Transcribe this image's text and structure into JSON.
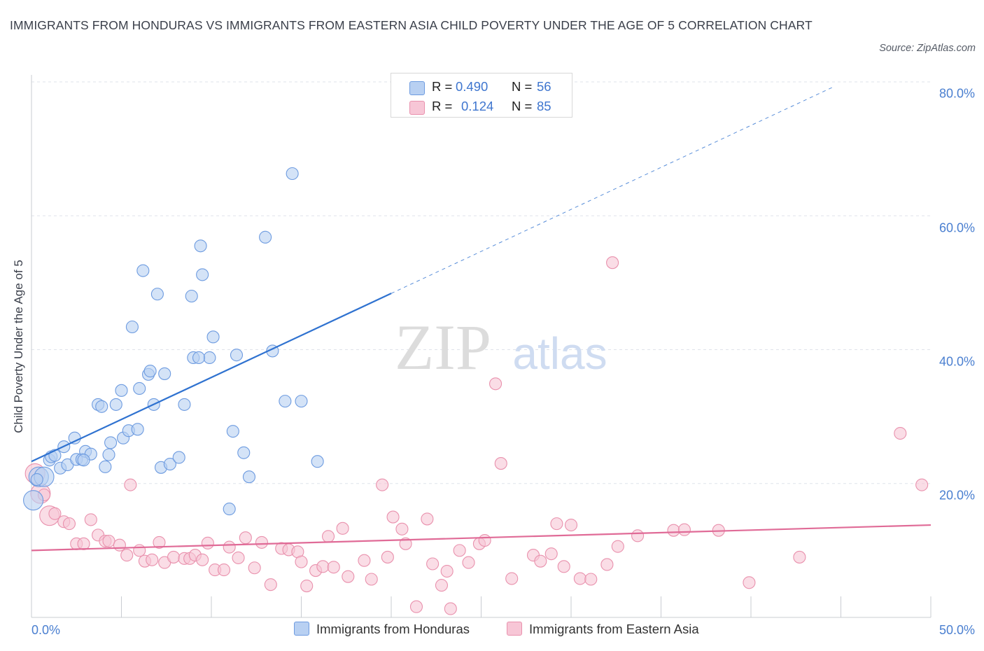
{
  "title": "IMMIGRANTS FROM HONDURAS VS IMMIGRANTS FROM EASTERN ASIA CHILD POVERTY UNDER THE AGE OF 5 CORRELATION CHART",
  "source": "Source: ZipAtlas.com",
  "watermark": {
    "zip": "ZIP",
    "atlas": "atlas"
  },
  "colors": {
    "blue_fill": "#b8d0f2",
    "blue_stroke": "#6d9be0",
    "blue_line": "#2f72d0",
    "pink_fill": "#f7c6d6",
    "pink_stroke": "#e991ad",
    "pink_line": "#e06b97",
    "axis_text": "#4a7fd0",
    "grid": "#dfe3ea"
  },
  "legend_top": [
    {
      "r_label": "R =",
      "r_value": "0.490",
      "n_label": "N =",
      "n_value": "56"
    },
    {
      "r_label": "R =",
      "r_value": "0.124",
      "n_label": "N =",
      "n_value": "85"
    }
  ],
  "legend_bottom": [
    "Immigrants from Honduras",
    "Immigrants from Eastern Asia"
  ],
  "chart_data": {
    "type": "scatter",
    "title": "IMMIGRANTS FROM HONDURAS VS IMMIGRANTS FROM EASTERN ASIA CHILD POVERTY UNDER THE AGE OF 5 CORRELATION CHART",
    "xlabel": "",
    "ylabel": "Child Poverty Under the Age of 5",
    "xlim": [
      0,
      50
    ],
    "ylim": [
      0,
      80
    ],
    "x_tick_labels": [
      "0.0%",
      "50.0%"
    ],
    "y_ticks": [
      20,
      40,
      60,
      80
    ],
    "y_tick_labels": [
      "20.0%",
      "40.0%",
      "60.0%",
      "80.0%"
    ],
    "series": [
      {
        "name": "Immigrants from Honduras",
        "color": "blue",
        "R": 0.49,
        "N": 56,
        "trend": {
          "x0": 0,
          "y0": 23.3,
          "x1": 20,
          "y1": 48.4,
          "dash_to_x": 44.5
        },
        "points": [
          [
            0.1,
            17.5
          ],
          [
            0.4,
            21.0
          ],
          [
            0.7,
            21.0
          ],
          [
            1.0,
            23.5
          ],
          [
            1.1,
            24.0
          ],
          [
            1.3,
            24.2
          ],
          [
            1.6,
            22.3
          ],
          [
            1.8,
            25.5
          ],
          [
            2.0,
            22.8
          ],
          [
            2.4,
            26.8
          ],
          [
            2.5,
            23.6
          ],
          [
            2.8,
            23.6
          ],
          [
            3.0,
            24.8
          ],
          [
            3.3,
            24.4
          ],
          [
            3.7,
            31.8
          ],
          [
            3.9,
            31.5
          ],
          [
            4.1,
            22.5
          ],
          [
            4.3,
            24.3
          ],
          [
            4.4,
            26.1
          ],
          [
            4.7,
            31.8
          ],
          [
            5.0,
            33.9
          ],
          [
            5.1,
            26.8
          ],
          [
            5.4,
            27.9
          ],
          [
            5.6,
            43.4
          ],
          [
            5.9,
            28.1
          ],
          [
            6.0,
            34.2
          ],
          [
            6.2,
            51.8
          ],
          [
            6.5,
            36.3
          ],
          [
            6.6,
            36.8
          ],
          [
            6.8,
            31.8
          ],
          [
            7.0,
            48.3
          ],
          [
            7.2,
            22.4
          ],
          [
            7.4,
            36.4
          ],
          [
            7.7,
            22.9
          ],
          [
            8.2,
            23.9
          ],
          [
            8.5,
            31.8
          ],
          [
            8.9,
            48.0
          ],
          [
            9.0,
            38.8
          ],
          [
            9.4,
            55.5
          ],
          [
            9.5,
            51.2
          ],
          [
            9.9,
            38.8
          ],
          [
            10.1,
            41.9
          ],
          [
            11.0,
            16.2
          ],
          [
            11.2,
            27.8
          ],
          [
            11.4,
            39.2
          ],
          [
            11.8,
            24.6
          ],
          [
            12.1,
            21.0
          ],
          [
            13.0,
            56.8
          ],
          [
            13.4,
            39.8
          ],
          [
            14.1,
            32.3
          ],
          [
            14.5,
            66.3
          ],
          [
            15.0,
            32.3
          ],
          [
            15.9,
            23.3
          ],
          [
            0.3,
            20.6
          ],
          [
            2.9,
            23.5
          ],
          [
            9.3,
            38.8
          ]
        ]
      },
      {
        "name": "Immigrants from Eastern Asia",
        "color": "pink",
        "R": 0.124,
        "N": 85,
        "trend": {
          "x0": 0,
          "y0": 10.0,
          "x1": 50,
          "y1": 13.8
        },
        "points": [
          [
            0.2,
            21.5
          ],
          [
            0.5,
            18.5
          ],
          [
            1.0,
            15.2
          ],
          [
            1.3,
            15.5
          ],
          [
            1.8,
            14.3
          ],
          [
            2.1,
            14.0
          ],
          [
            2.5,
            11.0
          ],
          [
            2.9,
            11.0
          ],
          [
            3.3,
            14.6
          ],
          [
            3.7,
            12.3
          ],
          [
            4.1,
            11.4
          ],
          [
            4.3,
            11.4
          ],
          [
            4.9,
            10.8
          ],
          [
            5.3,
            9.3
          ],
          [
            5.5,
            19.8
          ],
          [
            6.0,
            10.0
          ],
          [
            6.3,
            8.4
          ],
          [
            6.7,
            8.6
          ],
          [
            7.1,
            11.2
          ],
          [
            7.4,
            8.2
          ],
          [
            7.9,
            9.0
          ],
          [
            8.5,
            8.8
          ],
          [
            8.8,
            8.8
          ],
          [
            9.1,
            9.3
          ],
          [
            9.5,
            8.6
          ],
          [
            9.8,
            11.1
          ],
          [
            10.2,
            7.1
          ],
          [
            10.7,
            7.1
          ],
          [
            11.0,
            10.5
          ],
          [
            11.5,
            8.9
          ],
          [
            11.9,
            11.9
          ],
          [
            12.4,
            7.4
          ],
          [
            12.8,
            11.2
          ],
          [
            13.3,
            4.9
          ],
          [
            13.9,
            10.3
          ],
          [
            14.3,
            10.1
          ],
          [
            14.8,
            9.8
          ],
          [
            15.0,
            8.3
          ],
          [
            15.3,
            4.7
          ],
          [
            15.8,
            7.0
          ],
          [
            16.2,
            7.6
          ],
          [
            16.5,
            12.1
          ],
          [
            16.8,
            7.5
          ],
          [
            17.3,
            13.3
          ],
          [
            17.6,
            6.1
          ],
          [
            18.5,
            8.5
          ],
          [
            18.9,
            5.7
          ],
          [
            19.5,
            19.8
          ],
          [
            19.8,
            9.0
          ],
          [
            20.1,
            15.0
          ],
          [
            20.6,
            13.2
          ],
          [
            20.8,
            11.0
          ],
          [
            21.4,
            1.6
          ],
          [
            22.0,
            14.7
          ],
          [
            22.3,
            8.0
          ],
          [
            22.8,
            4.8
          ],
          [
            23.1,
            6.9
          ],
          [
            23.3,
            1.3
          ],
          [
            23.8,
            10.0
          ],
          [
            24.3,
            8.2
          ],
          [
            24.9,
            11.0
          ],
          [
            25.2,
            11.5
          ],
          [
            25.8,
            34.9
          ],
          [
            26.1,
            23.0
          ],
          [
            26.7,
            5.8
          ],
          [
            27.9,
            9.3
          ],
          [
            28.3,
            8.4
          ],
          [
            28.9,
            9.5
          ],
          [
            29.2,
            14.0
          ],
          [
            29.6,
            7.6
          ],
          [
            30.0,
            13.8
          ],
          [
            30.5,
            5.8
          ],
          [
            31.1,
            5.7
          ],
          [
            32.0,
            7.9
          ],
          [
            32.3,
            53.0
          ],
          [
            32.6,
            10.6
          ],
          [
            33.7,
            12.2
          ],
          [
            35.7,
            13.0
          ],
          [
            38.2,
            13.0
          ],
          [
            39.9,
            5.2
          ],
          [
            42.7,
            9.0
          ],
          [
            48.3,
            27.5
          ],
          [
            49.5,
            19.8
          ],
          [
            0.7,
            18.3
          ],
          [
            36.3,
            13.1
          ]
        ]
      }
    ]
  }
}
